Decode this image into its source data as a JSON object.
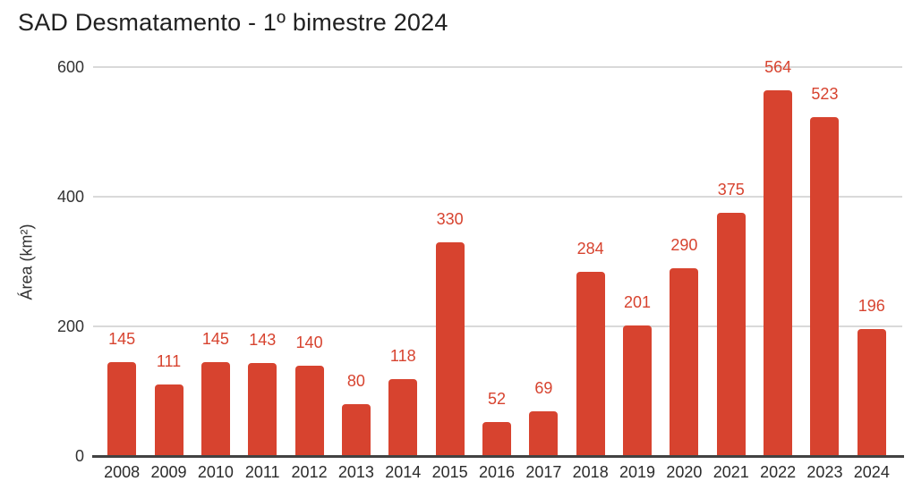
{
  "chart_data": {
    "type": "bar",
    "title": "SAD Desmatamento - 1º bimestre 2024",
    "ylabel": "Área (km²)",
    "xlabel": "",
    "categories": [
      "2008",
      "2009",
      "2010",
      "2011",
      "2012",
      "2013",
      "2014",
      "2015",
      "2016",
      "2017",
      "2018",
      "2019",
      "2020",
      "2021",
      "2022",
      "2023",
      "2024"
    ],
    "values": [
      145,
      111,
      145,
      143,
      140,
      80,
      118,
      330,
      52,
      69,
      284,
      201,
      290,
      375,
      564,
      523,
      196
    ],
    "ylim": [
      0,
      600
    ],
    "yticks": [
      0,
      200,
      400,
      600
    ],
    "grid": true,
    "legend": "none",
    "data_labels": true
  },
  "colors": {
    "bar": "#d7432f",
    "data_label": "#d7432f",
    "gridline": "#d9d9d9",
    "axis_line": "#424242",
    "axis_text": "#333333",
    "title_text": "#212121",
    "background": "#ffffff"
  }
}
